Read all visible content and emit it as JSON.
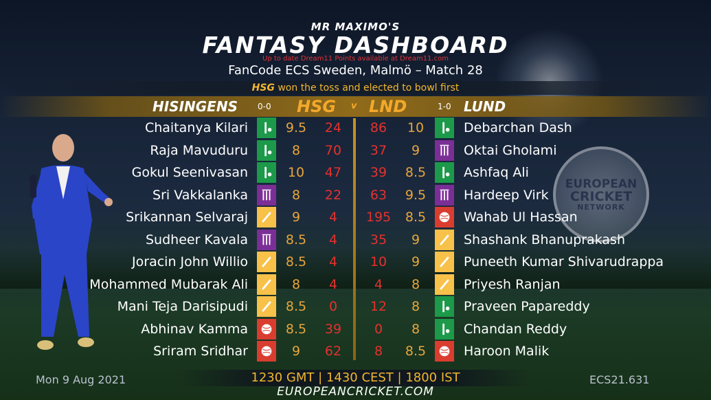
{
  "header": {
    "brand": "MR MAXIMO'S",
    "title": "FANTASY DASHBOARD",
    "notice": "Up to date Dream11 Points available at Dream11.com",
    "match": "FanCode ECS Sweden, Malmö – Match 28",
    "toss_team": "HSG",
    "toss_text": " won the toss and elected to bowl first"
  },
  "teams": {
    "home": {
      "name": "HISINGENS",
      "record": "0-0",
      "abbr": "HSG"
    },
    "vs": "v",
    "away": {
      "name": "LUND",
      "record": "1-0",
      "abbr": "LND"
    }
  },
  "logo": {
    "line1": "EUROPEAN",
    "line2": "CRICKET",
    "line3": "NETWORK"
  },
  "colors": {
    "batter": "#f7c14a",
    "bowler": "#d93d2f",
    "allrounder": "#7b2f96",
    "keeper": "#1c9a4a",
    "points": "#e5312d",
    "credits": "#e8a53c",
    "accent": "#f3a92b"
  },
  "rows": [
    {
      "home": {
        "name": "Chaitanya Kilari",
        "credits": "9.5",
        "points": "24",
        "role": "keeper"
      },
      "away": {
        "name": "Debarchan Dash",
        "credits": "10",
        "points": "86",
        "role": "keeper"
      }
    },
    {
      "home": {
        "name": "Raja Mavuduru",
        "credits": "8",
        "points": "70",
        "role": "keeper"
      },
      "away": {
        "name": "Oktai Gholami",
        "credits": "9",
        "points": "37",
        "role": "allrounder"
      }
    },
    {
      "home": {
        "name": "Gokul Seenivasan",
        "credits": "10",
        "points": "47",
        "role": "keeper"
      },
      "away": {
        "name": "Ashfaq Ali",
        "credits": "8.5",
        "points": "39",
        "role": "keeper"
      }
    },
    {
      "home": {
        "name": "Sri Vakkalanka",
        "credits": "8",
        "points": "22",
        "role": "allrounder"
      },
      "away": {
        "name": "Hardeep Virk",
        "credits": "9.5",
        "points": "63",
        "role": "allrounder"
      }
    },
    {
      "home": {
        "name": "Srikannan Selvaraj",
        "credits": "9",
        "points": "4",
        "role": "batter"
      },
      "away": {
        "name": "Wahab Ul Hassan",
        "credits": "8.5",
        "points": "195",
        "role": "bowler"
      }
    },
    {
      "home": {
        "name": "Sudheer Kavala",
        "credits": "8.5",
        "points": "4",
        "role": "allrounder"
      },
      "away": {
        "name": "Shashank Bhanuprakash",
        "credits": "9",
        "points": "35",
        "role": "batter"
      }
    },
    {
      "home": {
        "name": "Joracin John Willio",
        "credits": "8.5",
        "points": "4",
        "role": "batter"
      },
      "away": {
        "name": "Puneeth Kumar Shivarudrappa",
        "credits": "9",
        "points": "10",
        "role": "batter"
      }
    },
    {
      "home": {
        "name": "Mohammed Mubarak Ali",
        "credits": "8",
        "points": "4",
        "role": "batter"
      },
      "away": {
        "name": "Priyesh Ranjan",
        "credits": "8",
        "points": "4",
        "role": "batter"
      }
    },
    {
      "home": {
        "name": "Mani Teja Darisipudi",
        "credits": "8.5",
        "points": "0",
        "role": "batter"
      },
      "away": {
        "name": "Praveen Papareddy",
        "credits": "8",
        "points": "12",
        "role": "keeper"
      }
    },
    {
      "home": {
        "name": "Abhinav Kamma",
        "credits": "8.5",
        "points": "39",
        "role": "bowler"
      },
      "away": {
        "name": "Chandan Reddy",
        "credits": "8",
        "points": "0",
        "role": "keeper"
      }
    },
    {
      "home": {
        "name": "Sriram Sridhar",
        "credits": "9",
        "points": "62",
        "role": "bowler"
      },
      "away": {
        "name": "Haroon Malik",
        "credits": "8.5",
        "points": "8",
        "role": "bowler"
      }
    }
  ],
  "footer": {
    "date": "Mon 9 Aug 2021",
    "times": "1230 GMT | 1430 CEST | 1800 IST",
    "code": "ECS21.631",
    "url": "EUROPEANCRICKET.COM"
  }
}
